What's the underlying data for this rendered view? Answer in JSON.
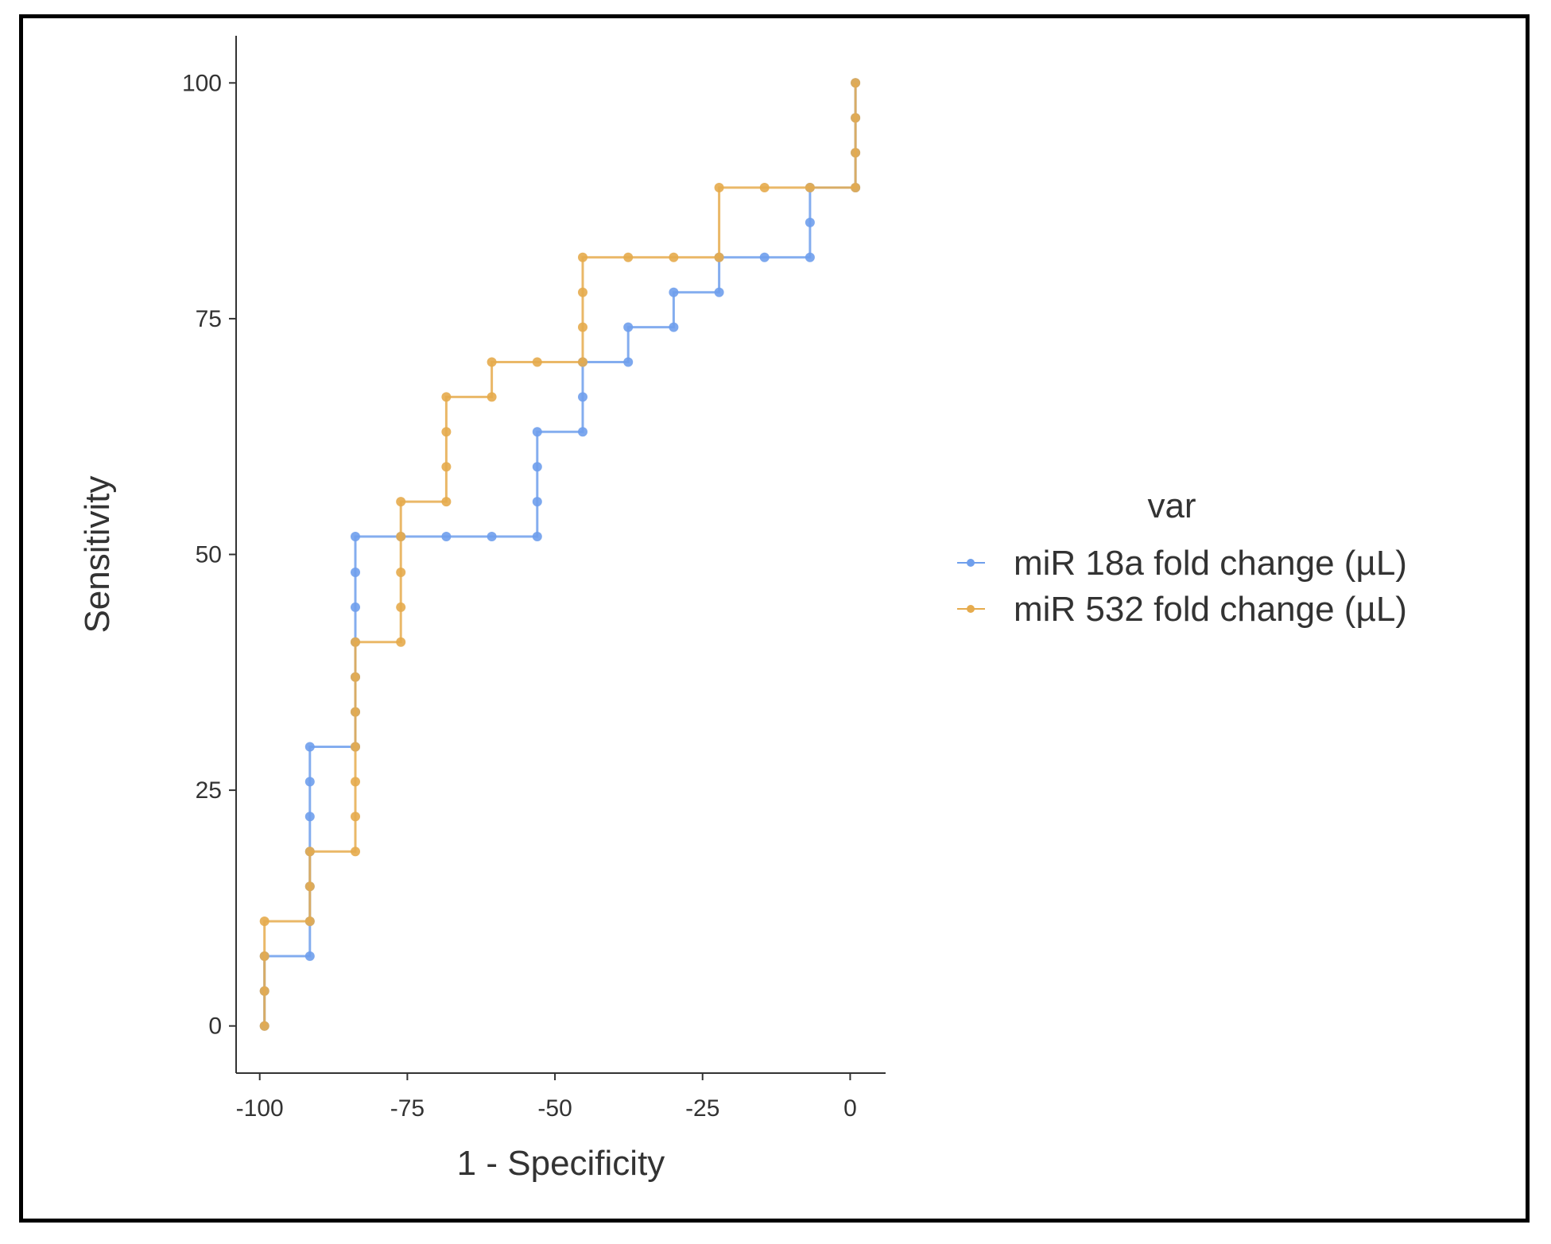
{
  "chart_data": {
    "type": "line",
    "step": true,
    "xlabel": "1 - Specificity",
    "ylabel": "Sensitivity",
    "xlim": [
      -104,
      6
    ],
    "ylim": [
      -5,
      105
    ],
    "xticks": [
      -100,
      -75,
      -50,
      -25,
      0
    ],
    "xtick_labels": [
      "-100",
      "-75",
      "-50",
      "-25",
      "0"
    ],
    "yticks": [
      0,
      25,
      50,
      75,
      100
    ],
    "ytick_labels": [
      "0",
      "25",
      "50",
      "75",
      "100"
    ],
    "grid": false,
    "legend": {
      "title": "var",
      "position": "right",
      "entries": [
        "miR 18a fold change (µL)",
        "miR 532 fold change (µL)"
      ]
    },
    "series": [
      {
        "name": "miR 18a fold change (µL)",
        "color": "#6f9fec",
        "points": [
          [
            -99.2,
            0
          ],
          [
            -99.2,
            3.7
          ],
          [
            -99.2,
            7.4
          ],
          [
            -91.5,
            7.4
          ],
          [
            -91.5,
            11.1
          ],
          [
            -91.5,
            14.8
          ],
          [
            -91.5,
            18.5
          ],
          [
            -91.5,
            22.2
          ],
          [
            -91.5,
            25.9
          ],
          [
            -91.5,
            29.6
          ],
          [
            -83.8,
            29.6
          ],
          [
            -83.8,
            33.3
          ],
          [
            -83.8,
            37.0
          ],
          [
            -83.8,
            40.7
          ],
          [
            -83.8,
            44.4
          ],
          [
            -83.8,
            48.1
          ],
          [
            -83.8,
            51.9
          ],
          [
            -76.1,
            51.9
          ],
          [
            -68.4,
            51.9
          ],
          [
            -60.7,
            51.9
          ],
          [
            -53.0,
            51.9
          ],
          [
            -53.0,
            55.6
          ],
          [
            -53.0,
            59.3
          ],
          [
            -53.0,
            63.0
          ],
          [
            -45.3,
            63.0
          ],
          [
            -45.3,
            66.7
          ],
          [
            -45.3,
            70.4
          ],
          [
            -37.6,
            70.4
          ],
          [
            -37.6,
            74.1
          ],
          [
            -29.9,
            74.1
          ],
          [
            -29.9,
            77.8
          ],
          [
            -22.2,
            77.8
          ],
          [
            -22.2,
            81.5
          ],
          [
            -14.5,
            81.5
          ],
          [
            -6.8,
            81.5
          ],
          [
            -6.8,
            85.2
          ],
          [
            -6.8,
            88.9
          ],
          [
            0.9,
            88.9
          ],
          [
            0.9,
            92.6
          ],
          [
            0.9,
            96.3
          ],
          [
            0.9,
            100
          ]
        ]
      },
      {
        "name": "miR 532 fold change (µL)",
        "color": "#e6ab4d",
        "points": [
          [
            -99.2,
            0
          ],
          [
            -99.2,
            3.7
          ],
          [
            -99.2,
            7.4
          ],
          [
            -99.2,
            11.1
          ],
          [
            -91.5,
            11.1
          ],
          [
            -91.5,
            14.8
          ],
          [
            -91.5,
            18.5
          ],
          [
            -83.8,
            18.5
          ],
          [
            -83.8,
            22.2
          ],
          [
            -83.8,
            25.9
          ],
          [
            -83.8,
            29.6
          ],
          [
            -83.8,
            33.3
          ],
          [
            -83.8,
            37.0
          ],
          [
            -83.8,
            40.7
          ],
          [
            -76.1,
            40.7
          ],
          [
            -76.1,
            44.4
          ],
          [
            -76.1,
            48.1
          ],
          [
            -76.1,
            51.9
          ],
          [
            -76.1,
            55.6
          ],
          [
            -68.4,
            55.6
          ],
          [
            -68.4,
            59.3
          ],
          [
            -68.4,
            63.0
          ],
          [
            -68.4,
            66.7
          ],
          [
            -60.7,
            66.7
          ],
          [
            -60.7,
            70.4
          ],
          [
            -53.0,
            70.4
          ],
          [
            -45.3,
            70.4
          ],
          [
            -45.3,
            74.1
          ],
          [
            -45.3,
            77.8
          ],
          [
            -45.3,
            81.5
          ],
          [
            -37.6,
            81.5
          ],
          [
            -29.9,
            81.5
          ],
          [
            -22.2,
            81.5
          ],
          [
            -22.2,
            88.9
          ],
          [
            -14.5,
            88.9
          ],
          [
            -6.8,
            88.9
          ],
          [
            0.9,
            88.9
          ],
          [
            0.9,
            92.6
          ],
          [
            0.9,
            96.3
          ],
          [
            0.9,
            100
          ]
        ]
      }
    ]
  }
}
